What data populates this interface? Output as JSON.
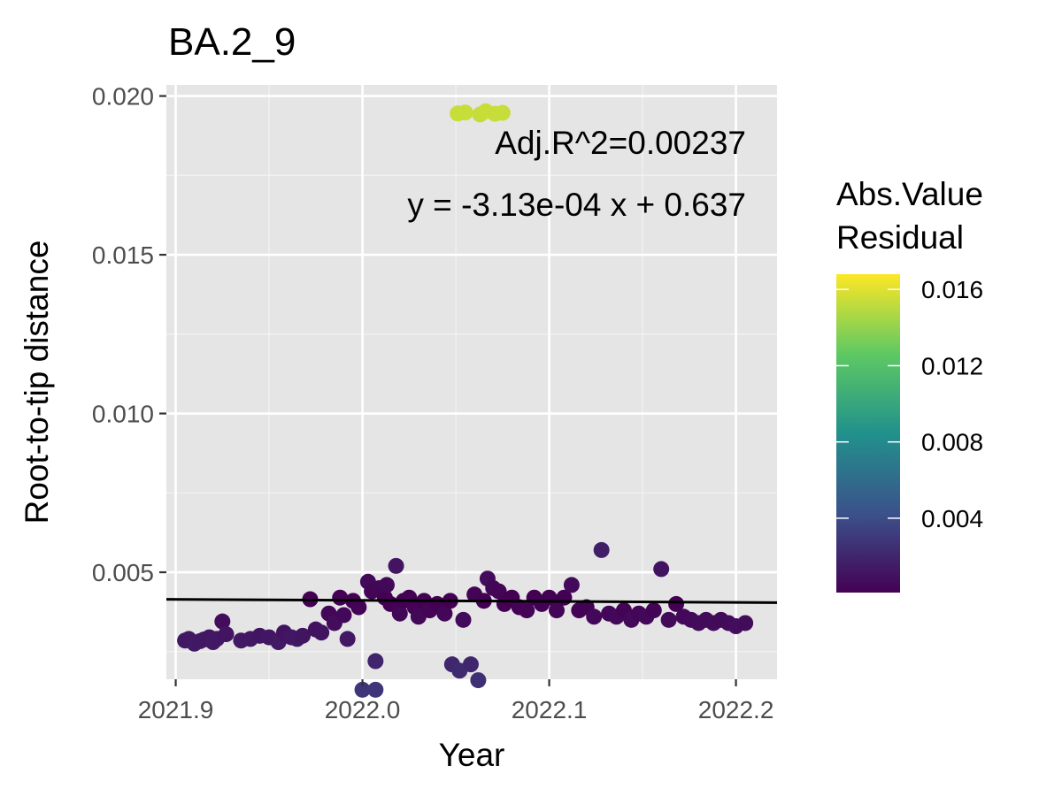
{
  "chart_data": {
    "type": "scatter",
    "title": "BA.2_9",
    "xlabel": "Year",
    "ylabel": "Root-to-tip distance",
    "xlim": [
      2021.895,
      2022.222
    ],
    "ylim": [
      0.00163,
      0.02035
    ],
    "x_ticks": [
      2021.9,
      2022.0,
      2022.1,
      2022.2
    ],
    "x_tick_labels": [
      "2021.9",
      "2022.0",
      "2022.1",
      "2022.2"
    ],
    "y_ticks": [
      0.005,
      0.01,
      0.015,
      0.02
    ],
    "y_tick_labels": [
      "0.005",
      "0.010",
      "0.015",
      "0.020"
    ],
    "grid": true,
    "annotations": [
      "Adj.R^2=0.00237",
      "y = -3.13e-04 x + 0.637"
    ],
    "regression_line": {
      "slope": -0.000313,
      "intercept": 0.637,
      "color": "#000000"
    },
    "legend": {
      "title_lines": [
        "Abs.Value",
        "Residual"
      ],
      "position": "right",
      "range": [
        0.0001,
        0.0168
      ],
      "ticks": [
        0.004,
        0.008,
        0.012,
        0.016
      ],
      "tick_labels": [
        "0.004",
        "0.008",
        "0.012",
        "0.016"
      ],
      "palette": [
        "#440154",
        "#3b528b",
        "#21918c",
        "#5ec962",
        "#fde725"
      ]
    },
    "points": [
      {
        "x": 2021.905,
        "y": 0.00285
      },
      {
        "x": 2021.907,
        "y": 0.0029
      },
      {
        "x": 2021.91,
        "y": 0.00275
      },
      {
        "x": 2021.913,
        "y": 0.00283
      },
      {
        "x": 2021.915,
        "y": 0.00288
      },
      {
        "x": 2021.918,
        "y": 0.00295
      },
      {
        "x": 2021.92,
        "y": 0.0028
      },
      {
        "x": 2021.922,
        "y": 0.0029
      },
      {
        "x": 2021.925,
        "y": 0.00345
      },
      {
        "x": 2021.927,
        "y": 0.00305
      },
      {
        "x": 2021.935,
        "y": 0.00285
      },
      {
        "x": 2021.94,
        "y": 0.0029
      },
      {
        "x": 2021.945,
        "y": 0.003
      },
      {
        "x": 2021.95,
        "y": 0.00295
      },
      {
        "x": 2021.955,
        "y": 0.0028
      },
      {
        "x": 2021.958,
        "y": 0.0031
      },
      {
        "x": 2021.962,
        "y": 0.00295
      },
      {
        "x": 2021.965,
        "y": 0.0029
      },
      {
        "x": 2021.968,
        "y": 0.003
      },
      {
        "x": 2021.972,
        "y": 0.00415
      },
      {
        "x": 2021.975,
        "y": 0.0032
      },
      {
        "x": 2021.978,
        "y": 0.0031
      },
      {
        "x": 2021.982,
        "y": 0.0037
      },
      {
        "x": 2021.985,
        "y": 0.0034
      },
      {
        "x": 2021.988,
        "y": 0.0042
      },
      {
        "x": 2021.99,
        "y": 0.00365
      },
      {
        "x": 2021.992,
        "y": 0.0029
      },
      {
        "x": 2021.995,
        "y": 0.0041
      },
      {
        "x": 2021.998,
        "y": 0.0039
      },
      {
        "x": 2022.0,
        "y": 0.0013
      },
      {
        "x": 2022.003,
        "y": 0.0047
      },
      {
        "x": 2022.005,
        "y": 0.0044
      },
      {
        "x": 2022.007,
        "y": 0.0013
      },
      {
        "x": 2022.007,
        "y": 0.0022
      },
      {
        "x": 2022.009,
        "y": 0.0045
      },
      {
        "x": 2022.012,
        "y": 0.0042
      },
      {
        "x": 2022.013,
        "y": 0.0046
      },
      {
        "x": 2022.015,
        "y": 0.004
      },
      {
        "x": 2022.018,
        "y": 0.0052
      },
      {
        "x": 2022.02,
        "y": 0.0037
      },
      {
        "x": 2022.022,
        "y": 0.0041
      },
      {
        "x": 2022.025,
        "y": 0.0042
      },
      {
        "x": 2022.028,
        "y": 0.0039
      },
      {
        "x": 2022.03,
        "y": 0.0036
      },
      {
        "x": 2022.033,
        "y": 0.0041
      },
      {
        "x": 2022.036,
        "y": 0.0038
      },
      {
        "x": 2022.04,
        "y": 0.004
      },
      {
        "x": 2022.044,
        "y": 0.0037
      },
      {
        "x": 2022.047,
        "y": 0.0041
      },
      {
        "x": 2022.048,
        "y": 0.0021
      },
      {
        "x": 2022.052,
        "y": 0.0019
      },
      {
        "x": 2022.054,
        "y": 0.0035
      },
      {
        "x": 2022.058,
        "y": 0.0021
      },
      {
        "x": 2022.06,
        "y": 0.0043
      },
      {
        "x": 2022.062,
        "y": 0.0016
      },
      {
        "x": 2022.065,
        "y": 0.0041
      },
      {
        "x": 2022.067,
        "y": 0.0048
      },
      {
        "x": 2022.07,
        "y": 0.0045
      },
      {
        "x": 2022.073,
        "y": 0.0044
      },
      {
        "x": 2022.076,
        "y": 0.004
      },
      {
        "x": 2022.08,
        "y": 0.0042
      },
      {
        "x": 2022.084,
        "y": 0.0039
      },
      {
        "x": 2022.088,
        "y": 0.0038
      },
      {
        "x": 2022.092,
        "y": 0.0042
      },
      {
        "x": 2022.096,
        "y": 0.004
      },
      {
        "x": 2022.1,
        "y": 0.0042
      },
      {
        "x": 2022.104,
        "y": 0.0038
      },
      {
        "x": 2022.108,
        "y": 0.0042
      },
      {
        "x": 2022.112,
        "y": 0.0046
      },
      {
        "x": 2022.116,
        "y": 0.0038
      },
      {
        "x": 2022.12,
        "y": 0.0039
      },
      {
        "x": 2022.124,
        "y": 0.0036
      },
      {
        "x": 2022.128,
        "y": 0.0057
      },
      {
        "x": 2022.132,
        "y": 0.0037
      },
      {
        "x": 2022.136,
        "y": 0.0036
      },
      {
        "x": 2022.14,
        "y": 0.0038
      },
      {
        "x": 2022.144,
        "y": 0.0035
      },
      {
        "x": 2022.148,
        "y": 0.0037
      },
      {
        "x": 2022.152,
        "y": 0.0036
      },
      {
        "x": 2022.156,
        "y": 0.0038
      },
      {
        "x": 2022.16,
        "y": 0.0051
      },
      {
        "x": 2022.164,
        "y": 0.0035
      },
      {
        "x": 2022.168,
        "y": 0.004
      },
      {
        "x": 2022.172,
        "y": 0.0036
      },
      {
        "x": 2022.176,
        "y": 0.0035
      },
      {
        "x": 2022.18,
        "y": 0.0034
      },
      {
        "x": 2022.184,
        "y": 0.0035
      },
      {
        "x": 2022.188,
        "y": 0.0034
      },
      {
        "x": 2022.192,
        "y": 0.0035
      },
      {
        "x": 2022.196,
        "y": 0.0034
      },
      {
        "x": 2022.2,
        "y": 0.0033
      },
      {
        "x": 2022.205,
        "y": 0.0034
      },
      {
        "x": 2022.051,
        "y": 0.01945
      },
      {
        "x": 2022.055,
        "y": 0.01948
      },
      {
        "x": 2022.063,
        "y": 0.01942
      },
      {
        "x": 2022.066,
        "y": 0.01952
      },
      {
        "x": 2022.071,
        "y": 0.01944
      },
      {
        "x": 2022.075,
        "y": 0.01947
      }
    ]
  }
}
